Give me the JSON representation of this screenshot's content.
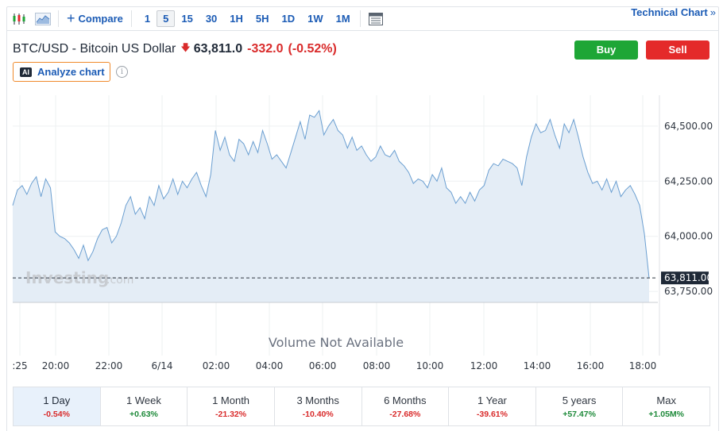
{
  "toolbar": {
    "compare_label": "Compare",
    "intervals": [
      "1",
      "5",
      "15",
      "30",
      "1H",
      "5H",
      "1D",
      "1W",
      "1M"
    ],
    "active_interval": "5",
    "technical_chart_label": "Technical Chart",
    "technical_chart_chevron": "»"
  },
  "instrument": {
    "title": "BTC/USD - Bitcoin US Dollar",
    "direction_icon": "arrow-down-icon",
    "price": "63,811.0",
    "change": "-332.0",
    "change_pct": "(-0.52%)"
  },
  "actions": {
    "buy_label": "Buy",
    "sell_label": "Sell"
  },
  "analyze": {
    "badge": "AI",
    "label": "Analyze chart",
    "info": "i"
  },
  "chart": {
    "watermark": "Investing",
    "watermark_suffix": ".com",
    "volume_text": "Volume Not Available",
    "current_price_label": "63,811.00",
    "y_ticks": [
      "64,500.00",
      "64,250.00",
      "64,000.00",
      "63,750.00"
    ],
    "x_ticks": [
      ":25",
      "20:00",
      "22:00",
      "6/14",
      "02:00",
      "04:00",
      "06:00",
      "08:00",
      "10:00",
      "12:00",
      "14:00",
      "16:00",
      "18:00"
    ],
    "colors": {
      "line": "#6b9fd1",
      "fill": "#e4edf6",
      "down": "#d92b2b",
      "up": "#1e8a3a",
      "accent": "#1b5bb5"
    }
  },
  "chart_data": {
    "type": "area",
    "title": "",
    "xlabel": "",
    "ylabel": "",
    "ylim": [
      63700,
      64640
    ],
    "x_ticks": [
      ":25",
      "20:00",
      "22:00",
      "6/14",
      "02:00",
      "04:00",
      "06:00",
      "08:00",
      "10:00",
      "12:00",
      "14:00",
      "16:00",
      "18:00"
    ],
    "y_ticks": [
      64500,
      64250,
      64000,
      63750
    ],
    "current_price": 63811.0,
    "series": [
      {
        "values": [
          64140,
          64210,
          64230,
          64190,
          64240,
          64270,
          64180,
          64260,
          64220,
          64020,
          64000,
          63990,
          63970,
          63940,
          63900,
          63960,
          63890,
          63930,
          63990,
          64030,
          64040,
          63970,
          64000,
          64060,
          64140,
          64180,
          64100,
          64130,
          64080,
          64180,
          64140,
          64230,
          64170,
          64200,
          64260,
          64190,
          64250,
          64220,
          64260,
          64290,
          64230,
          64180,
          64280,
          64480,
          64390,
          64450,
          64370,
          64340,
          64440,
          64420,
          64370,
          64430,
          64380,
          64480,
          64420,
          64350,
          64370,
          64340,
          64310,
          64380,
          64450,
          64520,
          64440,
          64550,
          64540,
          64570,
          64460,
          64500,
          64530,
          64480,
          64460,
          64400,
          64450,
          64390,
          64410,
          64370,
          64340,
          64360,
          64410,
          64370,
          64360,
          64390,
          64340,
          64320,
          64290,
          64240,
          64260,
          64250,
          64220,
          64280,
          64250,
          64310,
          64220,
          64200,
          64150,
          64180,
          64150,
          64200,
          64160,
          64210,
          64230,
          64300,
          64330,
          64320,
          64350,
          64340,
          64330,
          64310,
          64230,
          64360,
          64450,
          64510,
          64470,
          64480,
          64530,
          64460,
          64400,
          64510,
          64470,
          64530,
          64450,
          64360,
          64290,
          64240,
          64250,
          64210,
          64260,
          64200,
          64250,
          64180,
          64210,
          64230,
          64190,
          64140,
          64010,
          63810
        ]
      }
    ]
  },
  "periods": [
    {
      "label": "1 Day",
      "change": "-0.54%",
      "dir": "neg",
      "active": true
    },
    {
      "label": "1 Week",
      "change": "+0.63%",
      "dir": "pos",
      "active": false
    },
    {
      "label": "1 Month",
      "change": "-21.32%",
      "dir": "neg",
      "active": false
    },
    {
      "label": "3 Months",
      "change": "-10.40%",
      "dir": "neg",
      "active": false
    },
    {
      "label": "6 Months",
      "change": "-27.68%",
      "dir": "neg",
      "active": false
    },
    {
      "label": "1 Year",
      "change": "-39.61%",
      "dir": "neg",
      "active": false
    },
    {
      "label": "5 years",
      "change": "+57.47%",
      "dir": "pos",
      "active": false
    },
    {
      "label": "Max",
      "change": "+1.05M%",
      "dir": "pos",
      "active": false
    }
  ]
}
